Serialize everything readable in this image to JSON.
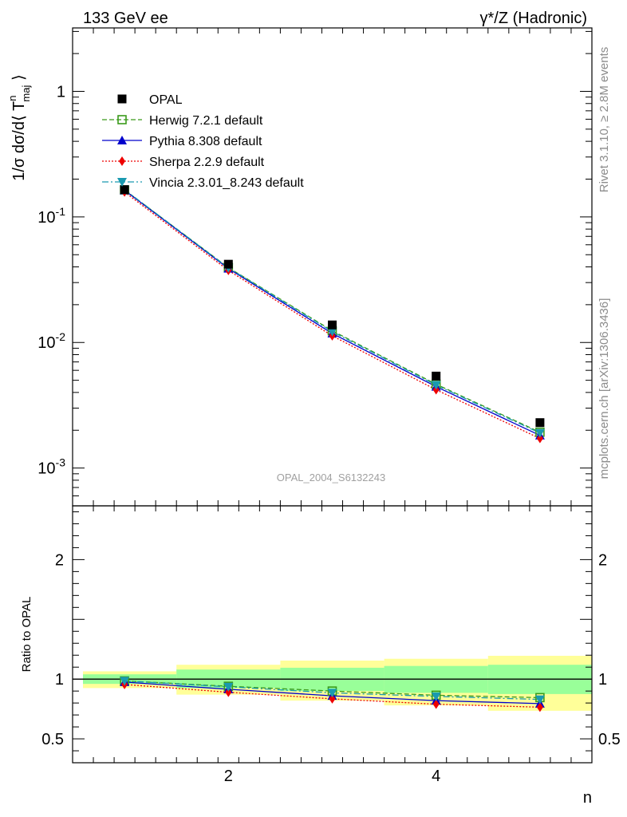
{
  "header": {
    "left_title": "133 GeV ee",
    "right_title": "γ*/Z (Hadronic)"
  },
  "side_labels": {
    "rivet": "Rivet 3.1.10, ≥ 2.8M events",
    "mcplots": "mcplots.cern.ch [arXiv:1306.3436]"
  },
  "analysis_id": "OPAL_2004_S6132243",
  "chart_data": [
    {
      "panel": "main",
      "type": "scatter",
      "ylabel": "1/σ dσ/d⟨ T^n_maj ⟩",
      "xlabel": "",
      "y_scale": "log",
      "xlim": [
        0.5,
        5.5
      ],
      "ylim": [
        0.0005,
        3.2
      ],
      "y_ticks": [
        {
          "value": 1,
          "label": "1"
        },
        {
          "value": 0.1,
          "label": "10^-1"
        },
        {
          "value": 0.01,
          "label": "10^-2"
        },
        {
          "value": 0.001,
          "label": "10^-3"
        }
      ],
      "legend_position": "top-left",
      "x": [
        1,
        2,
        3,
        4,
        5
      ],
      "series": [
        {
          "name": "OPAL",
          "color": "#000000",
          "marker": "square",
          "line": "none",
          "values": [
            0.165,
            0.042,
            0.0138,
            0.0054,
            0.0023
          ]
        },
        {
          "name": "Herwig 7.2.1 default",
          "color": "#3a9a1a",
          "marker": "open-square",
          "line": "dashed",
          "values": [
            0.164,
            0.0395,
            0.0124,
            0.00465,
            0.00193
          ]
        },
        {
          "name": "Pythia 8.308 default",
          "color": "#0000cc",
          "marker": "triangle-up",
          "line": "solid",
          "values": [
            0.163,
            0.0388,
            0.0118,
            0.00445,
            0.00182
          ]
        },
        {
          "name": "Sherpa 2.2.9 default",
          "color": "#ee0000",
          "marker": "diamond",
          "line": "dotted",
          "values": [
            0.158,
            0.0375,
            0.0113,
            0.0042,
            0.00172
          ]
        },
        {
          "name": "Vincia 2.3.01_8.243 default",
          "color": "#1a9ab0",
          "marker": "triangle-down",
          "line": "dashdot",
          "values": [
            0.165,
            0.0393,
            0.0122,
            0.00458,
            0.0019
          ]
        }
      ]
    },
    {
      "panel": "ratio",
      "type": "line",
      "ylabel": "Ratio to OPAL",
      "xlabel": "n",
      "xlim": [
        0.5,
        5.5
      ],
      "ylim": [
        0.3,
        2.45
      ],
      "x_ticks": [
        2,
        4
      ],
      "y_ticks": [
        {
          "value": 0.5,
          "label": "0.5"
        },
        {
          "value": 1,
          "label": "1"
        },
        {
          "value": 2,
          "label": "2"
        }
      ],
      "x": [
        1,
        2,
        3,
        4,
        5
      ],
      "bands": {
        "bins": [
          [
            0.6,
            1.5
          ],
          [
            1.5,
            2.5
          ],
          [
            2.5,
            3.5
          ],
          [
            3.5,
            4.5
          ],
          [
            4.5,
            5.5
          ]
        ],
        "inner": [
          [
            0.96,
            1.04
          ],
          [
            0.925,
            1.08
          ],
          [
            0.9,
            1.095
          ],
          [
            0.885,
            1.11
          ],
          [
            0.875,
            1.12
          ]
        ],
        "outer": [
          [
            0.925,
            1.065
          ],
          [
            0.87,
            1.12
          ],
          [
            0.82,
            1.155
          ],
          [
            0.78,
            1.17
          ],
          [
            0.735,
            1.195
          ]
        ],
        "inner_color": "#99ff99",
        "outer_color": "#ffff99"
      },
      "series": [
        {
          "name": "Herwig 7.2.1 default",
          "color": "#3a9a1a",
          "marker": "open-square",
          "line": "dashed",
          "values": [
            0.985,
            0.94,
            0.9,
            0.865,
            0.845
          ]
        },
        {
          "name": "Pythia 8.308 default",
          "color": "#0000cc",
          "marker": "triangle-up",
          "line": "solid",
          "values": [
            0.975,
            0.915,
            0.86,
            0.82,
            0.795
          ]
        },
        {
          "name": "Sherpa 2.2.9 default",
          "color": "#ee0000",
          "marker": "diamond",
          "line": "dotted",
          "values": [
            0.955,
            0.89,
            0.835,
            0.79,
            0.765
          ]
        },
        {
          "name": "Vincia 2.3.01_8.243 default",
          "color": "#1a9ab0",
          "marker": "triangle-down",
          "line": "dashdot",
          "values": [
            0.985,
            0.935,
            0.885,
            0.855,
            0.83
          ]
        }
      ]
    }
  ]
}
